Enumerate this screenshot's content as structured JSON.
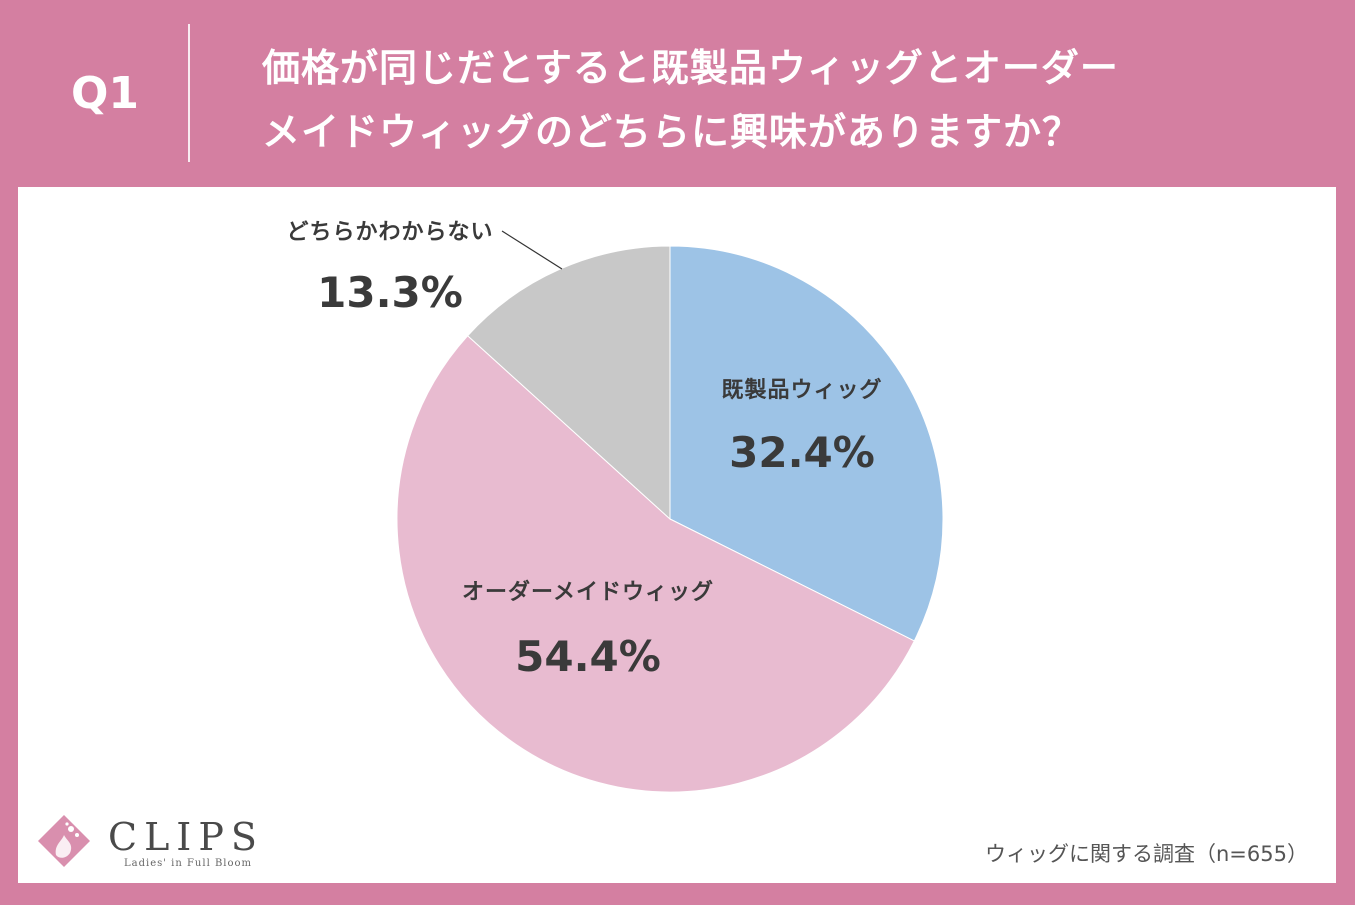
{
  "header": {
    "q_label": "Q1",
    "question_line1": "価格が同じだとすると既製品ウィッグとオーダー",
    "question_line2": "メイドウィッグのどちらに興味がありますか？"
  },
  "chart_data": {
    "type": "pie",
    "title": "",
    "slices": [
      {
        "label": "既製品ウィッグ",
        "value": 32.4,
        "display": "32.4%",
        "color": "#9dc3e6"
      },
      {
        "label": "オーダーメイドウィッグ",
        "value": 54.4,
        "display": "54.4%",
        "color": "#e8bbd0"
      },
      {
        "label": "どちらかわからない",
        "value": 13.3,
        "display": "13.3%",
        "color": "#c8c8c8"
      }
    ],
    "start": "12 o'clock",
    "direction": "clockwise"
  },
  "footer": {
    "survey_note": "ウィッグに関する調査（n=655）"
  },
  "logo": {
    "name": "CLIPS",
    "tagline": "Ladies' in Full Bloom"
  },
  "colors": {
    "background": "#d47fa1",
    "panel": "#ffffff",
    "label_text": "#3a3a3a"
  }
}
